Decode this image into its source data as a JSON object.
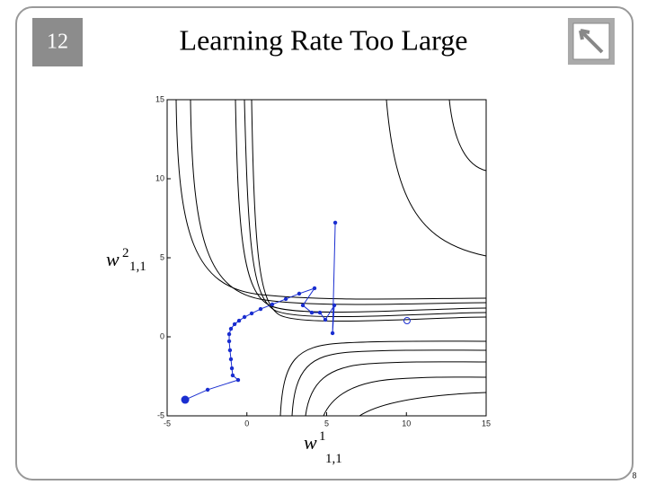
{
  "slide_number": "12",
  "title": "Learning Rate Too Large",
  "footer": "8",
  "chart_data": {
    "type": "line",
    "xlabel": {
      "base": "w",
      "superscript": "1",
      "subscript": "1,1"
    },
    "ylabel": {
      "base": "w",
      "superscript": "2",
      "subscript": "1,1"
    },
    "xlim": [
      -5,
      15
    ],
    "ylim": [
      -5,
      15
    ],
    "xticks": [
      -5,
      0,
      5,
      10,
      15
    ],
    "yticks": [
      -5,
      0,
      5,
      10,
      15
    ],
    "series": [
      {
        "color": "#1a2ed0",
        "x": [
          -3.87,
          -2.46,
          -0.55,
          -0.89,
          -0.94,
          -1.0,
          -1.06,
          -1.11,
          -1.11,
          -1.0,
          -0.77,
          -0.49,
          -0.15,
          0.3,
          0.86,
          1.59,
          2.44,
          3.28,
          4.24,
          3.51,
          4.07,
          4.58,
          4.92,
          5.48,
          5.37,
          5.54
        ],
        "values": [
          -3.98,
          -3.35,
          -2.73,
          -2.44,
          -1.99,
          -1.42,
          -0.85,
          -0.28,
          0.17,
          0.51,
          0.8,
          1.02,
          1.25,
          1.48,
          1.76,
          2.05,
          2.39,
          2.73,
          3.07,
          1.99,
          1.53,
          1.53,
          1.08,
          1.99,
          0.23,
          7.22
        ]
      }
    ],
    "minimum": {
      "x": 10.04,
      "y": 1.02
    }
  }
}
